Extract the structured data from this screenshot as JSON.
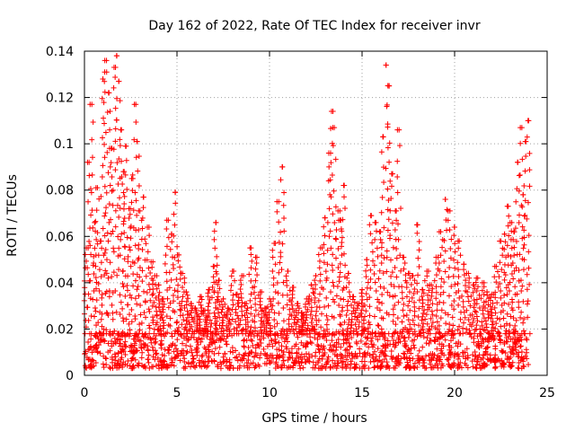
{
  "chart_data": {
    "type": "scatter",
    "title": "Day 162 of 2022, Rate Of TEC Index for receiver invr",
    "xlabel": "GPS time / hours",
    "ylabel": "ROTI / TECUs",
    "xlim": [
      0,
      25
    ],
    "ylim": [
      0,
      0.14
    ],
    "xticks": [
      0,
      5,
      10,
      15,
      20,
      25
    ],
    "xtick_labels": [
      "0",
      "5",
      "10",
      "15",
      "20",
      "25"
    ],
    "yticks": [
      0,
      0.02,
      0.04,
      0.06,
      0.08,
      0.1,
      0.12,
      0.14
    ],
    "ytick_labels": [
      "0",
      "0.02",
      "0.04",
      "0.06",
      "0.08",
      "0.1",
      "0.12",
      "0.14"
    ],
    "grid": true,
    "marker": "+",
    "series_color": "#ff0000",
    "series": [
      {
        "name": "ROTI",
        "x": [
          0.1,
          0.25,
          0.4,
          0.55,
          0.7,
          0.85,
          1.0,
          1.1,
          1.2,
          1.3,
          1.45,
          1.6,
          1.75,
          1.85,
          2.0,
          2.1,
          2.25,
          2.4,
          2.55,
          2.7,
          2.85,
          3.0,
          3.2,
          3.4,
          3.6,
          3.8,
          4.0,
          4.2,
          4.45,
          4.7,
          4.9,
          5.1,
          5.3,
          5.5,
          5.75,
          6.0,
          6.25,
          6.5,
          6.75,
          7.0,
          7.1,
          7.25,
          7.5,
          7.75,
          8.0,
          8.25,
          8.5,
          8.75,
          9.0,
          9.25,
          9.5,
          9.75,
          10.0,
          10.25,
          10.5,
          10.7,
          11.0,
          11.25,
          11.5,
          11.75,
          12.0,
          12.25,
          12.5,
          12.75,
          13.0,
          13.2,
          13.35,
          13.5,
          13.7,
          13.85,
          14.0,
          14.25,
          14.5,
          14.75,
          15.0,
          15.25,
          15.5,
          15.75,
          16.0,
          16.15,
          16.3,
          16.45,
          16.6,
          16.8,
          17.0,
          17.25,
          17.5,
          17.75,
          18.0,
          18.25,
          18.5,
          18.75,
          19.0,
          19.25,
          19.5,
          19.75,
          20.0,
          20.25,
          20.5,
          20.75,
          21.0,
          21.25,
          21.5,
          21.75,
          22.0,
          22.25,
          22.5,
          22.7,
          22.85,
          23.0,
          23.2,
          23.4,
          23.55,
          23.7,
          23.85,
          24.0
        ],
        "y": [
          0.055,
          0.092,
          0.117,
          0.066,
          0.081,
          0.058,
          0.128,
          0.136,
          0.131,
          0.122,
          0.098,
          0.133,
          0.138,
          0.127,
          0.106,
          0.088,
          0.099,
          0.072,
          0.085,
          0.117,
          0.101,
          0.071,
          0.077,
          0.064,
          0.049,
          0.043,
          0.039,
          0.033,
          0.067,
          0.061,
          0.079,
          0.052,
          0.044,
          0.036,
          0.031,
          0.029,
          0.034,
          0.028,
          0.037,
          0.047,
          0.066,
          0.041,
          0.033,
          0.029,
          0.045,
          0.035,
          0.043,
          0.031,
          0.055,
          0.051,
          0.036,
          0.029,
          0.033,
          0.057,
          0.075,
          0.09,
          0.045,
          0.038,
          0.031,
          0.027,
          0.033,
          0.039,
          0.043,
          0.055,
          0.068,
          0.096,
          0.114,
          0.107,
          0.071,
          0.067,
          0.082,
          0.044,
          0.034,
          0.031,
          0.037,
          0.05,
          0.069,
          0.066,
          0.062,
          0.103,
          0.134,
          0.125,
          0.087,
          0.071,
          0.106,
          0.051,
          0.044,
          0.043,
          0.065,
          0.037,
          0.045,
          0.039,
          0.051,
          0.062,
          0.076,
          0.071,
          0.064,
          0.058,
          0.048,
          0.044,
          0.039,
          0.042,
          0.04,
          0.036,
          0.035,
          0.047,
          0.058,
          0.061,
          0.073,
          0.066,
          0.062,
          0.092,
          0.107,
          0.078,
          0.101,
          0.11
        ],
        "baseline_band": {
          "x_range": [
            0,
            24
          ],
          "y_range": [
            0.003,
            0.02
          ]
        }
      }
    ]
  }
}
